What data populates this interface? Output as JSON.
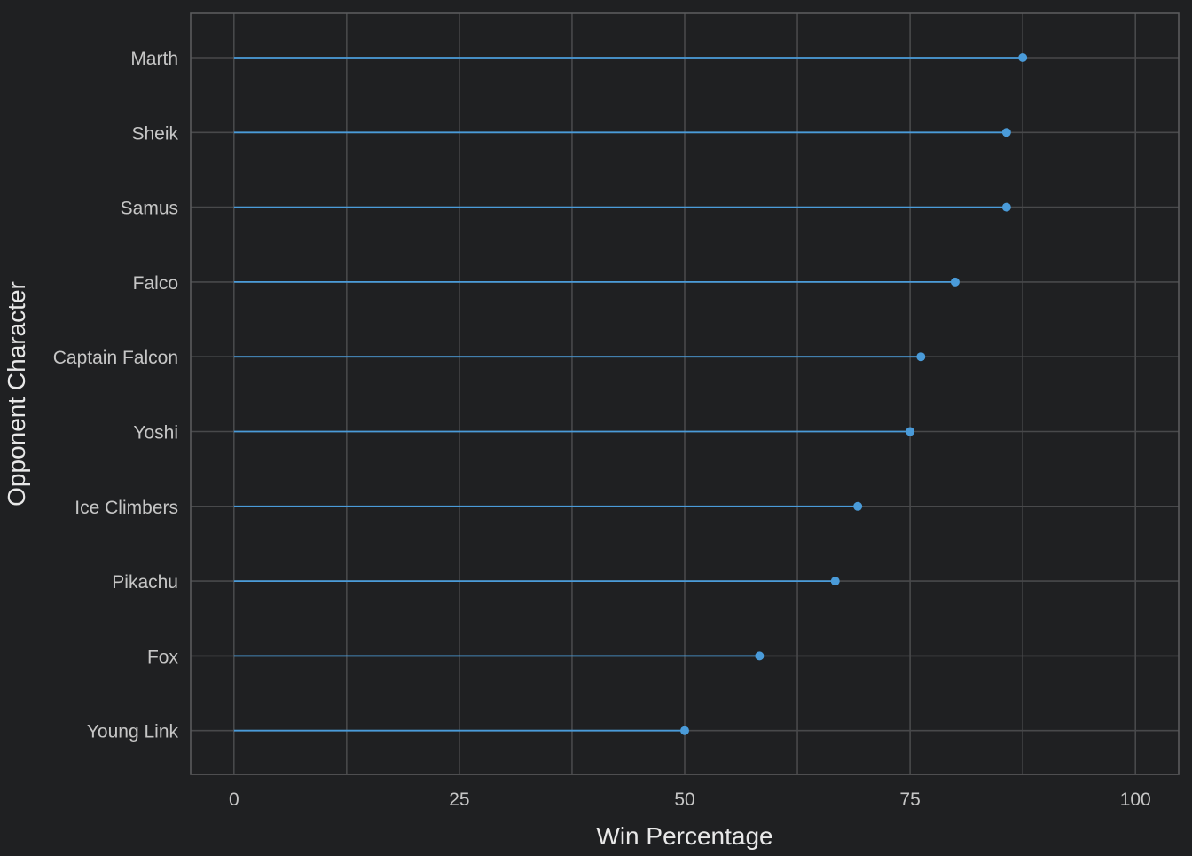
{
  "colors": {
    "background": "#1f2022",
    "panel_border": "#5a5b5d",
    "grid": "#48494b",
    "series": "#4a9bd9",
    "tick_text": "#c6c6c6",
    "axis_title": "#e8e8e8"
  },
  "chart_data": {
    "type": "lollipop",
    "orientation": "horizontal",
    "title": "",
    "xlabel": "Win Percentage",
    "ylabel": "Opponent Character",
    "xlim": [
      -4.8,
      104.8
    ],
    "xticks": [
      0,
      25,
      50,
      75,
      100
    ],
    "x_minor_gridlines": [
      12.5,
      37.5,
      62.5,
      87.5
    ],
    "grid": true,
    "legend": "none",
    "categories": [
      "Marth",
      "Sheik",
      "Samus",
      "Falco",
      "Captain Falcon",
      "Yoshi",
      "Ice Climbers",
      "Pikachu",
      "Fox",
      "Young Link"
    ],
    "values": [
      87.5,
      85.7,
      85.7,
      80.0,
      76.2,
      75.0,
      69.2,
      66.7,
      58.3,
      50.0
    ]
  }
}
